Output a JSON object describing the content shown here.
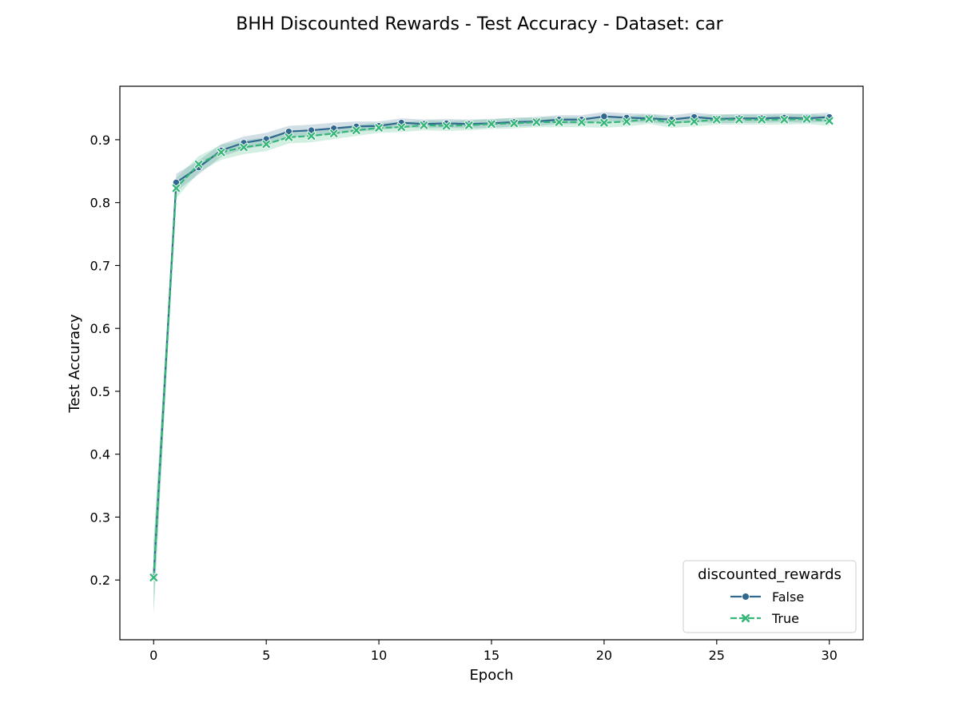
{
  "chart_data": {
    "type": "line",
    "title": "BHH Discounted Rewards - Test Accuracy - Dataset: car",
    "xlabel": "Epoch",
    "ylabel": "Test Accuracy",
    "xlim": [
      -1.5,
      31.5
    ],
    "ylim": [
      0.105,
      0.985
    ],
    "xticks": [
      0,
      5,
      10,
      15,
      20,
      25,
      30
    ],
    "yticks": [
      0.2,
      0.3,
      0.4,
      0.5,
      0.6,
      0.7,
      0.8,
      0.9
    ],
    "grid": false,
    "legend": {
      "title": "discounted_rewards",
      "position": "lower-right"
    },
    "x": [
      0,
      1,
      2,
      3,
      4,
      5,
      6,
      7,
      8,
      9,
      10,
      11,
      12,
      13,
      14,
      15,
      16,
      17,
      18,
      19,
      20,
      21,
      22,
      23,
      24,
      25,
      26,
      27,
      28,
      29,
      30
    ],
    "series": [
      {
        "name": "False",
        "color": "#31688e",
        "marker": "circle",
        "dash": "solid",
        "values": [
          0.205,
          0.832,
          0.856,
          0.883,
          0.895,
          0.901,
          0.913,
          0.915,
          0.918,
          0.921,
          0.922,
          0.927,
          0.925,
          0.926,
          0.925,
          0.926,
          0.928,
          0.929,
          0.932,
          0.932,
          0.937,
          0.935,
          0.934,
          0.932,
          0.936,
          0.933,
          0.934,
          0.934,
          0.935,
          0.934,
          0.936
        ],
        "lower": [
          0.15,
          0.818,
          0.845,
          0.873,
          0.885,
          0.891,
          0.904,
          0.906,
          0.909,
          0.913,
          0.915,
          0.92,
          0.918,
          0.919,
          0.918,
          0.919,
          0.921,
          0.922,
          0.925,
          0.925,
          0.93,
          0.928,
          0.927,
          0.925,
          0.929,
          0.926,
          0.927,
          0.927,
          0.928,
          0.927,
          0.929
        ],
        "upper": [
          0.255,
          0.846,
          0.867,
          0.893,
          0.905,
          0.911,
          0.922,
          0.924,
          0.927,
          0.929,
          0.929,
          0.934,
          0.932,
          0.933,
          0.932,
          0.933,
          0.935,
          0.936,
          0.939,
          0.939,
          0.944,
          0.942,
          0.941,
          0.939,
          0.943,
          0.94,
          0.941,
          0.941,
          0.942,
          0.941,
          0.943
        ]
      },
      {
        "name": "True",
        "color": "#35b779",
        "marker": "x",
        "dash": "dashed",
        "values": [
          0.204,
          0.823,
          0.861,
          0.88,
          0.888,
          0.893,
          0.904,
          0.906,
          0.91,
          0.915,
          0.919,
          0.92,
          0.923,
          0.922,
          0.923,
          0.925,
          0.926,
          0.928,
          0.928,
          0.928,
          0.927,
          0.929,
          0.933,
          0.927,
          0.929,
          0.932,
          0.932,
          0.932,
          0.932,
          0.933,
          0.93
        ],
        "lower": [
          0.145,
          0.807,
          0.848,
          0.868,
          0.877,
          0.882,
          0.894,
          0.896,
          0.901,
          0.906,
          0.911,
          0.912,
          0.915,
          0.914,
          0.915,
          0.917,
          0.918,
          0.92,
          0.92,
          0.92,
          0.919,
          0.921,
          0.925,
          0.919,
          0.921,
          0.924,
          0.924,
          0.924,
          0.924,
          0.925,
          0.922
        ],
        "upper": [
          0.262,
          0.839,
          0.874,
          0.892,
          0.899,
          0.904,
          0.914,
          0.916,
          0.919,
          0.924,
          0.927,
          0.928,
          0.931,
          0.93,
          0.931,
          0.933,
          0.934,
          0.936,
          0.936,
          0.936,
          0.935,
          0.937,
          0.941,
          0.935,
          0.937,
          0.94,
          0.94,
          0.94,
          0.94,
          0.941,
          0.938
        ]
      }
    ]
  }
}
